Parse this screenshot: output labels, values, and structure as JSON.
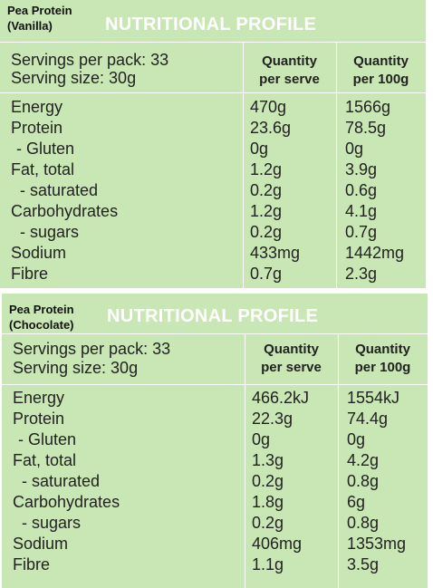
{
  "panels": [
    {
      "product": "Pea Protein",
      "variant": "(Vanilla)",
      "title": "NUTRITIONAL PROFILE",
      "servings_per_pack": "Servings per pack: 33",
      "serving_size": "Serving size: 30g",
      "col_serve": [
        "Quantity",
        "per serve"
      ],
      "col_100g": [
        "Quantity",
        "per 100g"
      ],
      "rows": [
        {
          "name": "Energy",
          "serve": "470g",
          "per100": "1566g"
        },
        {
          "name": "Protein",
          "serve": "23.6g",
          "per100": "78.5g"
        },
        {
          "name": " - Gluten",
          "serve": "0g",
          "per100": "0g"
        },
        {
          "name": "Fat, total",
          "serve": "1.2g",
          "per100": "3.9g"
        },
        {
          "name": "  - saturated",
          "serve": "0.2g",
          "per100": "0.6g"
        },
        {
          "name": "Carbohydrates",
          "serve": "1.2g",
          "per100": "4.1g"
        },
        {
          "name": "  - sugars",
          "serve": "0.2g",
          "per100": "0.7g"
        },
        {
          "name": "Sodium",
          "serve": "433mg",
          "per100": "1442mg"
        },
        {
          "name": "Fibre",
          "serve": "0.7g",
          "per100": "2.3g"
        }
      ]
    },
    {
      "product": "Pea Protein",
      "variant": "(Chocolate)",
      "title": "NUTRITIONAL PROFILE",
      "servings_per_pack": "Servings per pack: 33",
      "serving_size": "Serving size: 30g",
      "col_serve": [
        "Quantity",
        "per serve"
      ],
      "col_100g": [
        "Quantity",
        "per 100g"
      ],
      "rows": [
        {
          "name": "Energy",
          "serve": "466.2kJ",
          "per100": "1554kJ"
        },
        {
          "name": "Protein",
          "serve": "22.3g",
          "per100": "74.4g"
        },
        {
          "name": " - Gluten",
          "serve": "0g",
          "per100": "0g"
        },
        {
          "name": "Fat, total",
          "serve": "1.3g",
          "per100": "4.2g"
        },
        {
          "name": "  - saturated",
          "serve": "0.2g",
          "per100": "0.8g"
        },
        {
          "name": "Carbohydrates",
          "serve": "1.8g",
          "per100": "6g"
        },
        {
          "name": "  - sugars",
          "serve": "0.2g",
          "per100": "0.8g"
        },
        {
          "name": "Sodium",
          "serve": "406mg",
          "per100": "1353mg"
        },
        {
          "name": "Fibre",
          "serve": "1.1g",
          "per100": "3.5g"
        }
      ]
    }
  ]
}
